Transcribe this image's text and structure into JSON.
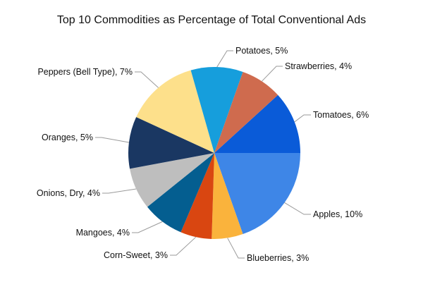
{
  "chart_data": {
    "type": "pie",
    "title": "Top 10 Commodities as Percentage of Total Conventional Ads",
    "slices": [
      {
        "label": "Tomatoes",
        "value": 6,
        "label_text": "Tomatoes, 6%",
        "color": "#0A5BD8"
      },
      {
        "label": "Apples",
        "value": 10,
        "label_text": "Apples, 10%",
        "color": "#3E86E7"
      },
      {
        "label": "Blueberries",
        "value": 3,
        "label_text": "Blueberries, 3%",
        "color": "#FAB33C"
      },
      {
        "label": "Corn-Sweet",
        "value": 3,
        "label_text": "Corn-Sweet, 3%",
        "color": "#D94611"
      },
      {
        "label": "Mangoes",
        "value": 4,
        "label_text": "Mangoes, 4%",
        "color": "#045E90"
      },
      {
        "label": "Onions, Dry",
        "value": 4,
        "label_text": "Onions, Dry, 4%",
        "color": "#BEBEBE"
      },
      {
        "label": "Oranges",
        "value": 5,
        "label_text": "Oranges, 5%",
        "color": "#1A3762"
      },
      {
        "label": "Peppers (Bell Type)",
        "value": 7,
        "label_text": "Peppers (Bell Type), 7%",
        "color": "#FDE08B"
      },
      {
        "label": "Potatoes",
        "value": 5,
        "label_text": "Potatoes, 5%",
        "color": "#169EDC"
      },
      {
        "label": "Strawberries",
        "value": 4,
        "label_text": "Strawberries, 4%",
        "color": "#CF6B4E"
      }
    ]
  }
}
